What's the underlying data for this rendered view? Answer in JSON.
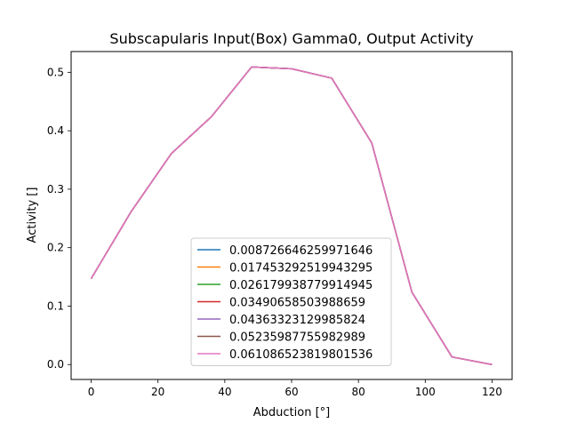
{
  "chart_data": {
    "type": "line",
    "title": "Subscapularis Input(Box) Gamma0, Output Activity",
    "xlabel": "Abduction [°]",
    "ylabel": "Activity []",
    "xlim": [
      -6,
      126
    ],
    "ylim": [
      -0.0255,
      0.5355
    ],
    "xticks": [
      0,
      20,
      40,
      60,
      80,
      100,
      120
    ],
    "yticks": [
      0.0,
      0.1,
      0.2,
      0.3,
      0.4,
      0.5
    ],
    "xtick_labels": [
      "0",
      "20",
      "40",
      "60",
      "80",
      "100",
      "120"
    ],
    "ytick_labels": [
      "0.0",
      "0.1",
      "0.2",
      "0.3",
      "0.4",
      "0.5"
    ],
    "grid": false,
    "legend_position": "lower-center",
    "x": [
      0,
      12,
      24,
      36,
      48,
      60,
      72,
      84,
      96,
      108,
      120
    ],
    "series": [
      {
        "name": "0.008726646259971646",
        "color": "#1f77b4",
        "values": [
          0.147,
          0.262,
          0.361,
          0.424,
          0.509,
          0.506,
          0.49,
          0.379,
          0.124,
          0.013,
          0.0
        ]
      },
      {
        "name": "0.017453292519943295",
        "color": "#ff7f0e",
        "values": [
          0.147,
          0.262,
          0.361,
          0.424,
          0.509,
          0.506,
          0.49,
          0.379,
          0.124,
          0.013,
          0.0
        ]
      },
      {
        "name": "0.026179938779914945",
        "color": "#2ca02c",
        "values": [
          0.147,
          0.262,
          0.361,
          0.424,
          0.509,
          0.506,
          0.49,
          0.379,
          0.124,
          0.013,
          0.0
        ]
      },
      {
        "name": "0.03490658503988659",
        "color": "#d62728",
        "values": [
          0.147,
          0.262,
          0.361,
          0.424,
          0.509,
          0.506,
          0.49,
          0.379,
          0.124,
          0.013,
          0.0
        ]
      },
      {
        "name": "0.04363323129985824",
        "color": "#9467bd",
        "values": [
          0.147,
          0.262,
          0.361,
          0.424,
          0.509,
          0.506,
          0.49,
          0.379,
          0.124,
          0.013,
          0.0
        ]
      },
      {
        "name": "0.05235987755982989",
        "color": "#8c564b",
        "values": [
          0.147,
          0.262,
          0.361,
          0.424,
          0.509,
          0.506,
          0.49,
          0.379,
          0.124,
          0.013,
          0.0
        ]
      },
      {
        "name": "0.061086523819801536",
        "color": "#e377c2",
        "values": [
          0.147,
          0.262,
          0.361,
          0.424,
          0.509,
          0.506,
          0.49,
          0.379,
          0.124,
          0.013,
          0.0
        ]
      }
    ]
  }
}
